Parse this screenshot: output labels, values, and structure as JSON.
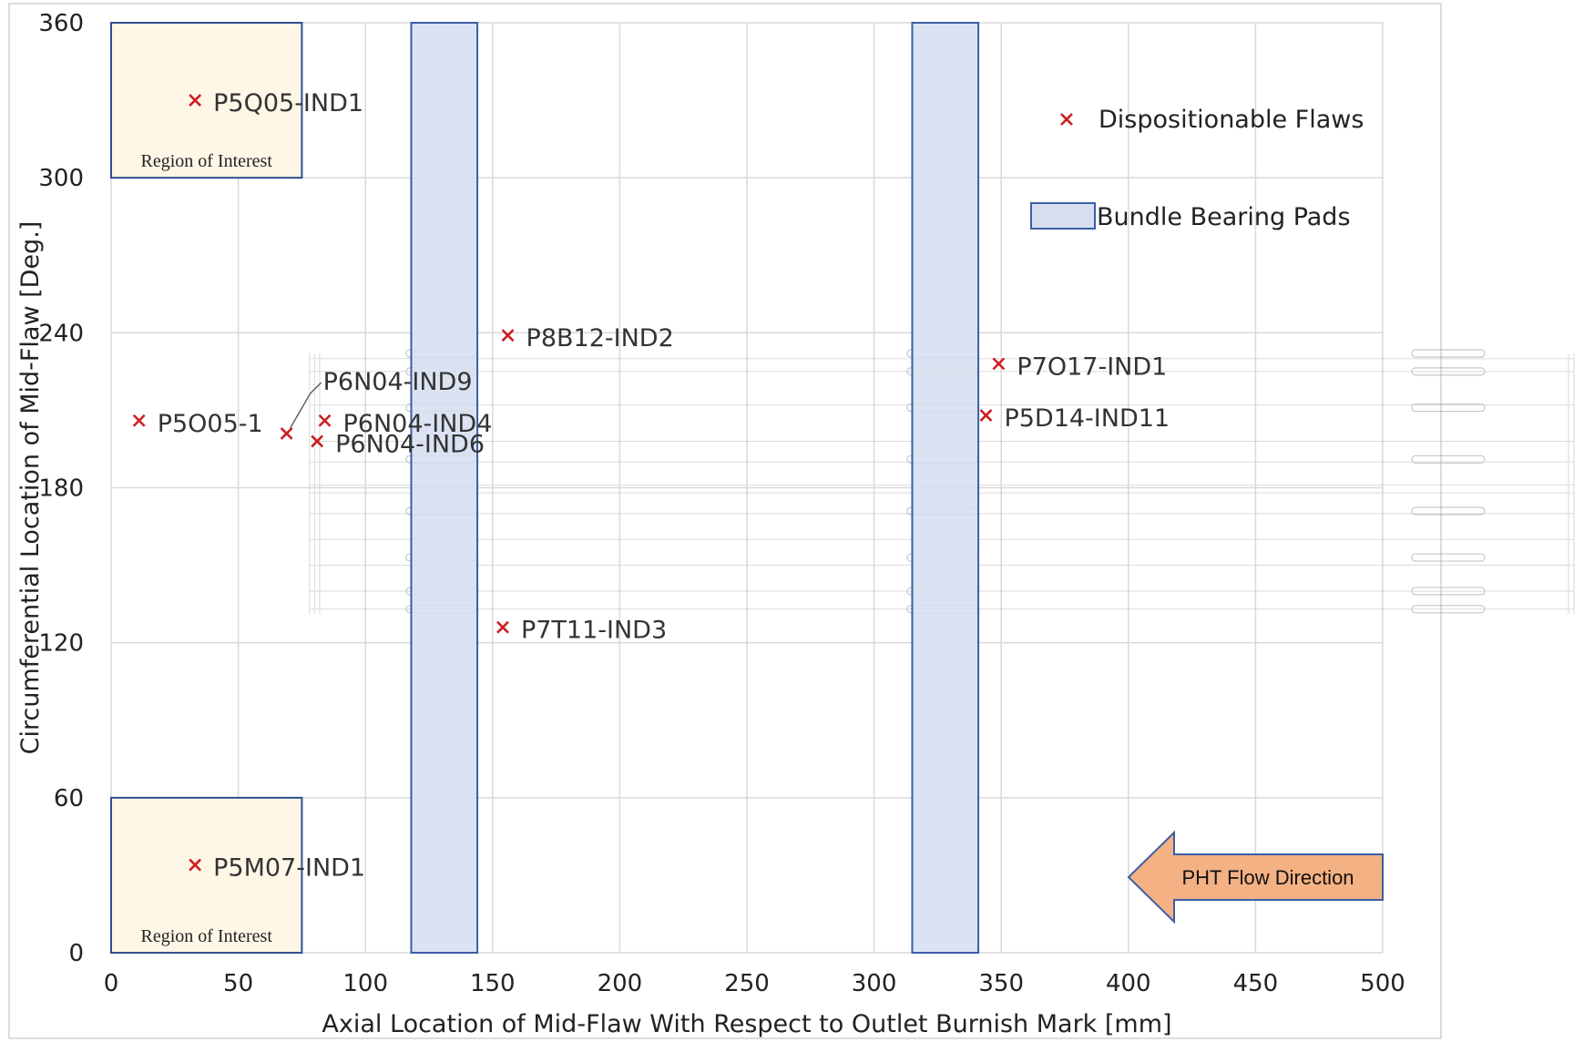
{
  "chart_data": {
    "type": "scatter",
    "xlabel": "Axial Location of Mid-Flaw With Respect to Outlet Burnish Mark [mm]",
    "ylabel": "Circumferential Location of Mid-Flaw [Deg.]",
    "xlim": [
      0,
      500
    ],
    "ylim": [
      0,
      360
    ],
    "xticks": [
      0,
      50,
      100,
      150,
      200,
      250,
      300,
      350,
      400,
      450,
      500
    ],
    "yticks": [
      0,
      60,
      120,
      180,
      240,
      300,
      360
    ],
    "grid": true,
    "legend_placement": "top-right",
    "series": [
      {
        "name": "Dispositionable Flaws",
        "marker": "x",
        "color": "#cc1f1f",
        "points": [
          {
            "label": "P5Q05-IND1",
            "x": 33,
            "y": 330
          },
          {
            "label": "P5O05-1",
            "x": 11,
            "y": 206
          },
          {
            "label": "P6N04-IND9",
            "x": 69,
            "y": 201
          },
          {
            "label": "P6N04-IND4",
            "x": 84,
            "y": 206
          },
          {
            "label": "P6N04-IND6",
            "x": 81,
            "y": 198
          },
          {
            "label": "P8B12-IND2",
            "x": 156,
            "y": 239
          },
          {
            "label": "P7T11-IND3",
            "x": 154,
            "y": 126
          },
          {
            "label": "P7O17-IND1",
            "x": 349,
            "y": 228
          },
          {
            "label": "P5D14-IND11",
            "x": 344,
            "y": 208
          },
          {
            "label": "P5M07-IND1",
            "x": 33,
            "y": 34
          }
        ]
      }
    ],
    "regions": [
      {
        "name": "Bundle Bearing Pads",
        "x": [
          118,
          144
        ],
        "y": [
          0,
          360
        ],
        "fill": "#d6dff0",
        "stroke": "#3b5ea6"
      },
      {
        "name": "Bundle Bearing Pads",
        "x": [
          315,
          341
        ],
        "y": [
          0,
          360
        ],
        "fill": "#d6dff0",
        "stroke": "#3b5ea6"
      }
    ],
    "regions_of_interest": [
      {
        "label": "Region of Interest",
        "x": [
          0,
          75
        ],
        "y": [
          300,
          360
        ]
      },
      {
        "label": "Region of Interest",
        "x": [
          0,
          75
        ],
        "y": [
          0,
          60
        ]
      }
    ],
    "legend": {
      "flaws": "Dispositionable Flaws",
      "pads": "Bundle Bearing Pads"
    },
    "annotation": {
      "flow_label": "PHT Flow Direction",
      "flow_color": "#f4b183",
      "flow_stroke": "#3b5ea6"
    },
    "colors": {
      "roi_fill": "#fff7e6",
      "roi_stroke": "#2f4f8f",
      "grid": "#d9d9d9",
      "marker": "#cc1f1f"
    }
  }
}
